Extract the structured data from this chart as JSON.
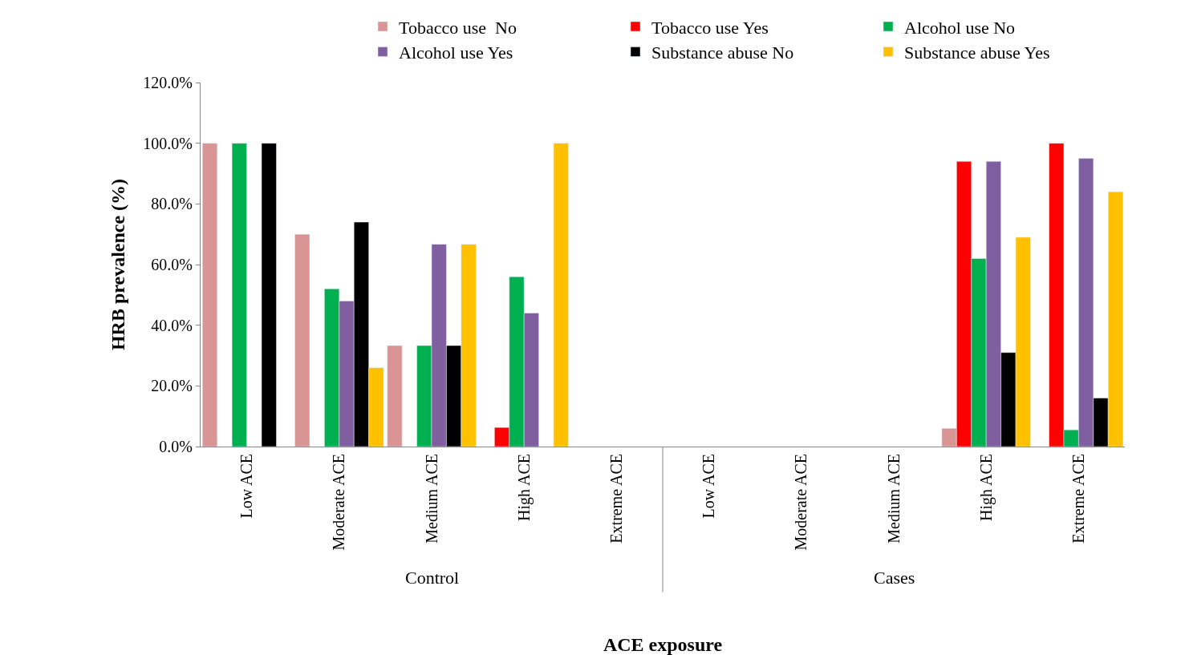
{
  "chart_data": {
    "type": "bar",
    "xlabel": "ACE exposure",
    "ylabel": "HRB prevalence (%)",
    "categories": [
      "Low ACE",
      "Moderate ACE",
      "Medium ACE",
      "High ACE",
      "Extreme ACE",
      "Low ACE",
      "Moderate ACE",
      "Medium ACE",
      "High ACE",
      "Extreme ACE"
    ],
    "annotations": [
      "Control",
      "Cases"
    ],
    "series": [
      {
        "name": "Tobacco use  No",
        "color": "#d99594",
        "values": [
          100,
          70,
          33.3,
          null,
          null,
          null,
          null,
          null,
          6,
          null
        ]
      },
      {
        "name": "Tobacco use Yes",
        "color": "#ff0000",
        "values": [
          null,
          null,
          null,
          6.3,
          null,
          null,
          null,
          null,
          94,
          100
        ]
      },
      {
        "name": "Alcohol use No",
        "color": "#00b050",
        "values": [
          100,
          52,
          33.3,
          56,
          null,
          null,
          null,
          null,
          62,
          5.5
        ]
      },
      {
        "name": "Alcohol use Yes",
        "color": "#7f5f9f",
        "values": [
          null,
          48,
          66.7,
          44,
          null,
          null,
          null,
          null,
          94,
          95
        ]
      },
      {
        "name": "Substance abuse No",
        "color": "#000000",
        "values": [
          100,
          74,
          33.3,
          null,
          null,
          null,
          null,
          null,
          31,
          16
        ]
      },
      {
        "name": "Substance abuse Yes",
        "color": "#ffc000",
        "values": [
          null,
          26,
          66.7,
          100,
          null,
          null,
          null,
          null,
          69,
          84
        ]
      }
    ],
    "ylim": [
      0,
      120
    ],
    "yticks": [
      {
        "value": 0,
        "label": "0.0%"
      },
      {
        "value": 20,
        "label": "20.0%"
      },
      {
        "value": 40,
        "label": "40.0%"
      },
      {
        "value": 60,
        "label": "60.0%"
      },
      {
        "value": 80,
        "label": "80.0%"
      },
      {
        "value": 100,
        "label": "100.0%"
      },
      {
        "value": 120,
        "label": "120.0%"
      }
    ],
    "legend": "top right"
  }
}
